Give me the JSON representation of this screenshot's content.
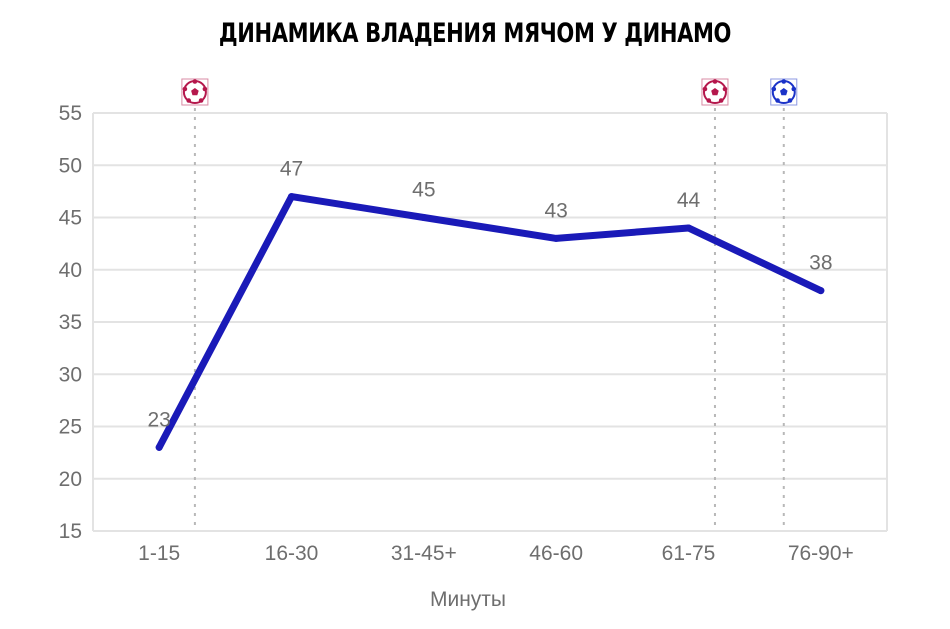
{
  "chart_data": {
    "type": "line",
    "title": "ДИНАМИКА ВЛАДЕНИЯ МЯЧОМ У ДИНАМО",
    "xlabel": "Минуты",
    "ylabel": "",
    "categories": [
      "1-15",
      "16-30",
      "31-45+",
      "46-60",
      "61-75",
      "76-90+"
    ],
    "series": [
      {
        "values": [
          23,
          47,
          45,
          43,
          44,
          38
        ],
        "color": "#1a1ab8"
      }
    ],
    "ylim": [
      15,
      55
    ],
    "yticks": [
      15,
      20,
      25,
      30,
      35,
      40,
      45,
      50,
      55
    ],
    "grid": true,
    "goal_markers": [
      {
        "position": 0.27,
        "icon": "soccer-ball-icon",
        "color": "#b5174c"
      },
      {
        "position": 4.2,
        "icon": "soccer-ball-icon",
        "color": "#b5174c"
      },
      {
        "position": 4.72,
        "icon": "soccer-ball-icon",
        "color": "#1a32c8"
      }
    ]
  }
}
